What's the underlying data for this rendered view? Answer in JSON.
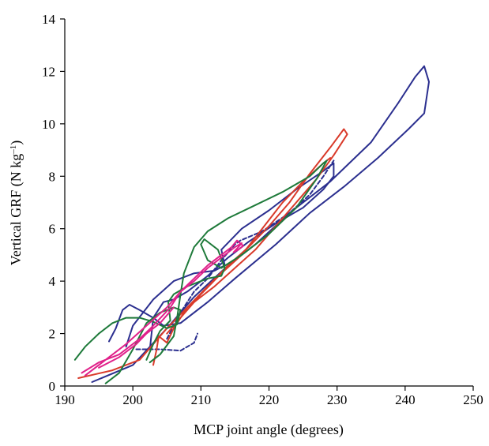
{
  "chart_data": {
    "type": "line",
    "title": "",
    "xlabel": "MCP joint angle (degrees)",
    "ylabel_main": "Vertical GRF (N kg",
    "ylabel_sup": "–1",
    "ylabel_end": ")",
    "xlim": [
      190,
      250
    ],
    "ylim": [
      0,
      14
    ],
    "x_ticks": [
      "190",
      "200",
      "210",
      "220",
      "230",
      "240",
      "250"
    ],
    "y_ticks": [
      "0",
      "2",
      "4",
      "6",
      "8",
      "10",
      "12",
      "14"
    ],
    "grid": false,
    "legend": "none",
    "series": [
      {
        "color": "#2b2f8f",
        "dashed": false,
        "points": [
          [
            194,
            0.15
          ],
          [
            200,
            0.8
          ],
          [
            205,
            2.2
          ],
          [
            209,
            3.4
          ],
          [
            214,
            4.6
          ],
          [
            218,
            5.4
          ],
          [
            223,
            6.6
          ],
          [
            229,
            7.8
          ],
          [
            235,
            9.3
          ],
          [
            239,
            10.8
          ],
          [
            241.5,
            11.8
          ],
          [
            242.8,
            12.2
          ],
          [
            243.5,
            11.6
          ],
          [
            242.8,
            10.4
          ],
          [
            240.5,
            9.8
          ],
          [
            236,
            8.7
          ],
          [
            231,
            7.6
          ],
          [
            226,
            6.6
          ],
          [
            221,
            5.4
          ],
          [
            215,
            4.1
          ],
          [
            211,
            3.2
          ],
          [
            207,
            2.4
          ],
          [
            204.5,
            2.3
          ],
          [
            203,
            2.6
          ],
          [
            201,
            2.9
          ],
          [
            199.5,
            3.1
          ],
          [
            198.5,
            2.9
          ],
          [
            197.5,
            2.2
          ],
          [
            196.5,
            1.7
          ]
        ]
      },
      {
        "color": "#2b2f8f",
        "dashed": false,
        "points": [
          [
            199,
            1.5
          ],
          [
            200,
            2.3
          ],
          [
            203,
            3.3
          ],
          [
            206,
            4.0
          ],
          [
            209,
            4.3
          ],
          [
            212,
            4.4
          ],
          [
            213.5,
            4.6
          ],
          [
            213,
            5.2
          ],
          [
            216,
            6.0
          ],
          [
            220,
            6.7
          ],
          [
            224,
            7.5
          ],
          [
            228,
            8.2
          ],
          [
            229.5,
            8.5
          ],
          [
            229.5,
            8.0
          ],
          [
            228,
            7.5
          ],
          [
            225,
            6.8
          ],
          [
            221,
            6.2
          ],
          [
            217,
            5.5
          ],
          [
            214,
            4.9
          ],
          [
            211,
            4.2
          ],
          [
            208,
            3.6
          ],
          [
            206,
            3.3
          ],
          [
            204.5,
            3.2
          ],
          [
            203,
            2.6
          ],
          [
            202.5,
            1.4
          ]
        ]
      },
      {
        "color": "#2b2f8f",
        "dashed": true,
        "points": [
          [
            200.5,
            1.4
          ],
          [
            204,
            1.4
          ],
          [
            207,
            1.35
          ],
          [
            209,
            1.65
          ],
          [
            209.5,
            2.0
          ]
        ]
      },
      {
        "color": "#2b2f8f",
        "dashed": true,
        "points": [
          [
            205,
            1.8
          ],
          [
            207,
            2.8
          ],
          [
            209,
            3.6
          ],
          [
            211,
            4.1
          ],
          [
            213,
            4.8
          ],
          [
            215,
            5.4
          ],
          [
            215.8,
            5.55
          ],
          [
            219,
            5.9
          ],
          [
            223,
            6.6
          ],
          [
            226,
            7.3
          ],
          [
            228,
            8.0
          ],
          [
            229.5,
            8.6
          ]
        ]
      },
      {
        "color": "#d93a2a",
        "dashed": false,
        "points": [
          [
            192,
            0.3
          ],
          [
            197,
            0.6
          ],
          [
            201,
            1.0
          ],
          [
            205,
            2.2
          ],
          [
            208,
            3.0
          ],
          [
            211,
            3.8
          ],
          [
            214,
            4.6
          ],
          [
            217,
            5.3
          ],
          [
            220,
            6.1
          ],
          [
            223,
            7.0
          ],
          [
            226,
            8.1
          ],
          [
            229,
            9.1
          ],
          [
            231,
            9.8
          ],
          [
            231.5,
            9.6
          ],
          [
            229.5,
            8.8
          ],
          [
            227,
            7.9
          ],
          [
            224,
            7.0
          ],
          [
            221,
            6.1
          ],
          [
            218,
            5.2
          ],
          [
            215,
            4.5
          ],
          [
            212,
            3.8
          ],
          [
            210,
            3.4
          ],
          [
            208,
            3.0
          ],
          [
            206,
            2.2
          ],
          [
            205,
            1.65
          ],
          [
            203.8,
            1.9
          ],
          [
            203.5,
            1.4
          ],
          [
            203,
            0.8
          ]
        ]
      },
      {
        "color": "#d93a2a",
        "dashed": false,
        "points": [
          [
            205,
            2.0
          ],
          [
            207,
            2.6
          ],
          [
            210,
            3.5
          ],
          [
            213,
            4.3
          ],
          [
            216,
            5.0
          ],
          [
            219,
            6.0
          ],
          [
            222,
            7.0
          ],
          [
            225,
            7.8
          ],
          [
            228,
            8.5
          ],
          [
            229,
            8.7
          ]
        ]
      },
      {
        "color": "#1e7a3a",
        "dashed": false,
        "points": [
          [
            191.5,
            1.0
          ],
          [
            193,
            1.5
          ],
          [
            195,
            2.0
          ],
          [
            197,
            2.4
          ],
          [
            199,
            2.6
          ],
          [
            201,
            2.6
          ],
          [
            203,
            2.45
          ],
          [
            205,
            2.2
          ],
          [
            206.5,
            2.35
          ],
          [
            207,
            2.9
          ],
          [
            206,
            3.0
          ],
          [
            204,
            2.8
          ],
          [
            202,
            2.4
          ],
          [
            200,
            1.4
          ],
          [
            198,
            0.5
          ],
          [
            196,
            0.1
          ]
        ]
      },
      {
        "color": "#1e7a3a",
        "dashed": false,
        "points": [
          [
            202,
            1.0
          ],
          [
            203,
            1.6
          ],
          [
            204,
            2.1
          ],
          [
            205.5,
            2.5
          ],
          [
            205.2,
            3.2
          ],
          [
            206,
            3.5
          ],
          [
            208,
            3.8
          ],
          [
            211,
            4.1
          ],
          [
            213,
            4.2
          ],
          [
            213.5,
            4.5
          ],
          [
            212.5,
            5.2
          ],
          [
            210.5,
            5.6
          ],
          [
            210,
            5.4
          ],
          [
            211,
            4.8
          ],
          [
            213,
            4.5
          ],
          [
            216,
            5.0
          ],
          [
            220,
            5.8
          ],
          [
            224,
            6.8
          ],
          [
            227,
            7.9
          ],
          [
            228.5,
            8.6
          ],
          [
            228,
            8.5
          ],
          [
            226,
            8.0
          ],
          [
            222,
            7.4
          ],
          [
            218,
            6.9
          ],
          [
            214,
            6.4
          ],
          [
            211,
            5.9
          ],
          [
            209,
            5.3
          ],
          [
            207.5,
            4.3
          ],
          [
            207,
            3.5
          ],
          [
            206.5,
            2.6
          ],
          [
            206,
            1.9
          ],
          [
            204,
            1.2
          ],
          [
            202.5,
            0.9
          ]
        ]
      },
      {
        "color": "#e0218a",
        "dashed": false,
        "points": [
          [
            192.5,
            0.5
          ],
          [
            195,
            0.9
          ],
          [
            198,
            1.2
          ],
          [
            201,
            1.8
          ],
          [
            203,
            2.3
          ],
          [
            205.5,
            3.0
          ],
          [
            207,
            3.6
          ],
          [
            209,
            4.0
          ],
          [
            211,
            4.5
          ],
          [
            213,
            4.9
          ],
          [
            215,
            5.3
          ],
          [
            216,
            5.45
          ],
          [
            215.5,
            5.3
          ],
          [
            214.8,
            5.1
          ],
          [
            215.5,
            5.2
          ],
          [
            216.2,
            5.35
          ],
          [
            215.3,
            5.55
          ],
          [
            214.5,
            5.3
          ],
          [
            213,
            5.0
          ],
          [
            211,
            4.6
          ],
          [
            209,
            4.1
          ],
          [
            207,
            3.6
          ],
          [
            205,
            3.0
          ],
          [
            202,
            2.3
          ],
          [
            199,
            1.6
          ],
          [
            196,
            1.0
          ],
          [
            193,
            0.4
          ]
        ]
      },
      {
        "color": "#e0218a",
        "dashed": false,
        "points": [
          [
            195,
            0.7
          ],
          [
            198,
            1.1
          ],
          [
            200.5,
            1.6
          ],
          [
            202,
            2.0
          ],
          [
            204,
            2.4
          ],
          [
            206,
            3.0
          ]
        ]
      }
    ]
  }
}
